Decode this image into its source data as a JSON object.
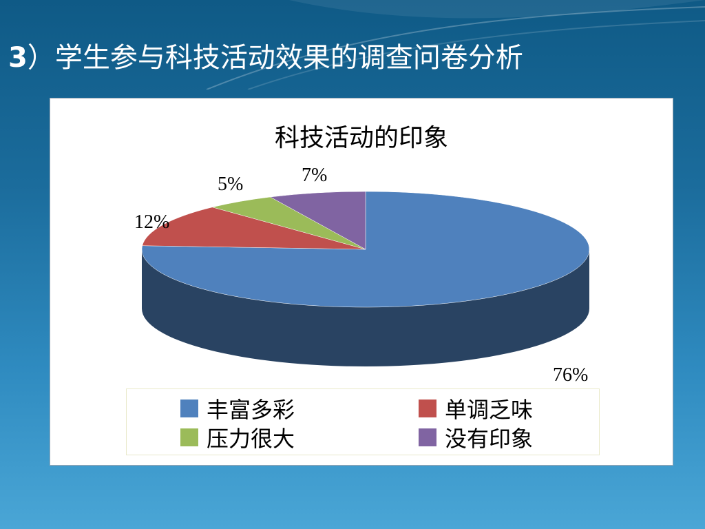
{
  "slide": {
    "title_num": "3",
    "title_text": "）学生参与科技活动效果的调查问卷分析"
  },
  "chart_data": {
    "type": "pie",
    "title": "科技活动的印象",
    "categories": [
      "丰富多彩",
      "单调乏味",
      "压力很大",
      "没有印象"
    ],
    "values": [
      76,
      12,
      5,
      7
    ],
    "data_labels": [
      "76%",
      "12%",
      "5%",
      "7%"
    ],
    "colors": [
      "#4f81bd",
      "#c0504d",
      "#9bbb59",
      "#8064a2"
    ],
    "legend_position": "bottom",
    "style": "3d"
  }
}
